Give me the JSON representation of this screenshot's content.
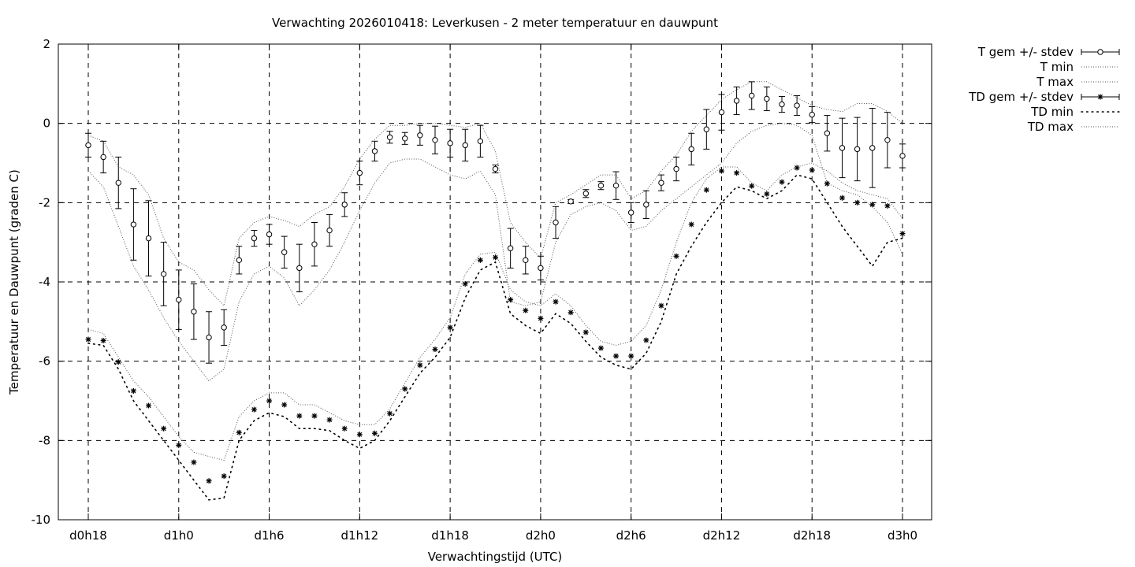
{
  "chart_data": {
    "type": "line",
    "title": "Verwachting 2026010418: Leverkusen - 2 meter temperatuur en dauwpunt",
    "xlabel": "Verwachtingstijd (UTC)",
    "ylabel": "Temperatuur en Dauwpunt (graden C)",
    "ylim": [
      -10,
      2
    ],
    "yticks": [
      2,
      0,
      -2,
      -4,
      -6,
      -8,
      -10
    ],
    "xlim": [
      18,
      75
    ],
    "xticks": [
      {
        "x": 18,
        "label": "d0h18"
      },
      {
        "x": 24,
        "label": "d1h0"
      },
      {
        "x": 30,
        "label": "d1h6"
      },
      {
        "x": 36,
        "label": "d1h12"
      },
      {
        "x": 42,
        "label": "d1h18"
      },
      {
        "x": 48,
        "label": "d2h0"
      },
      {
        "x": 54,
        "label": "d2h6"
      },
      {
        "x": 60,
        "label": "d2h12"
      },
      {
        "x": 66,
        "label": "d2h18"
      },
      {
        "x": 72,
        "label": "d3h0"
      }
    ],
    "grid": true,
    "legend_position": "outside-top-right",
    "series": [
      {
        "name": "T gem +/- stdev",
        "style": "errorbar-circle",
        "x": [
          18,
          19,
          20,
          21,
          22,
          23,
          24,
          25,
          26,
          27,
          28,
          29,
          30,
          31,
          32,
          33,
          34,
          35,
          36,
          37,
          38,
          39,
          40,
          41,
          42,
          43,
          44,
          45,
          46,
          47,
          48,
          49,
          50,
          51,
          52,
          53,
          54,
          55,
          56,
          57,
          58,
          59,
          60,
          61,
          62,
          63,
          64,
          65,
          66,
          67,
          68,
          69,
          70,
          71,
          72
        ],
        "y": [
          -0.55,
          -0.85,
          -1.5,
          -2.55,
          -2.9,
          -3.8,
          -4.45,
          -4.75,
          -5.4,
          -5.15,
          -3.45,
          -2.9,
          -2.8,
          -3.25,
          -3.65,
          -3.05,
          -2.7,
          -2.05,
          -1.25,
          -0.7,
          -0.35,
          -0.38,
          -0.3,
          -0.42,
          -0.5,
          -0.55,
          -0.45,
          -1.15,
          -3.15,
          -3.45,
          -3.65,
          -2.5,
          -1.97,
          -1.77,
          -1.57,
          -1.57,
          -2.25,
          -2.05,
          -1.5,
          -1.15,
          -0.65,
          -0.15,
          0.28,
          0.57,
          0.7,
          0.62,
          0.48,
          0.45,
          0.22,
          -0.25,
          -0.62,
          -0.65,
          -0.62,
          -0.42,
          -0.82
        ],
        "sd": [
          0.3,
          0.4,
          0.65,
          0.9,
          0.95,
          0.8,
          0.75,
          0.7,
          0.65,
          0.45,
          0.35,
          0.2,
          0.25,
          0.4,
          0.6,
          0.55,
          0.4,
          0.3,
          0.3,
          0.25,
          0.15,
          0.15,
          0.25,
          0.35,
          0.35,
          0.4,
          0.4,
          0.1,
          0.5,
          0.35,
          0.3,
          0.4,
          0.05,
          0.1,
          0.1,
          0.35,
          0.25,
          0.35,
          0.2,
          0.3,
          0.4,
          0.5,
          0.45,
          0.35,
          0.35,
          0.3,
          0.2,
          0.25,
          0.2,
          0.45,
          0.75,
          0.8,
          1.0,
          0.7,
          0.3
        ]
      },
      {
        "name": "T min",
        "style": "dotted",
        "x": [
          18,
          19,
          20,
          21,
          22,
          23,
          24,
          25,
          26,
          27,
          28,
          29,
          30,
          31,
          32,
          33,
          34,
          35,
          36,
          37,
          38,
          39,
          40,
          41,
          42,
          43,
          44,
          45,
          46,
          47,
          48,
          49,
          50,
          51,
          52,
          53,
          54,
          55,
          56,
          57,
          58,
          59,
          60,
          61,
          62,
          63,
          64,
          65,
          66,
          67,
          68,
          69,
          70,
          71,
          72
        ],
        "y": [
          -1.2,
          -1.6,
          -2.6,
          -3.6,
          -4.2,
          -4.9,
          -5.5,
          -6.0,
          -6.5,
          -6.2,
          -4.5,
          -3.8,
          -3.6,
          -3.9,
          -4.6,
          -4.2,
          -3.7,
          -3.0,
          -2.2,
          -1.5,
          -1.0,
          -0.9,
          -0.9,
          -1.1,
          -1.3,
          -1.4,
          -1.2,
          -1.8,
          -4.5,
          -4.6,
          -4.5,
          -3.0,
          -2.3,
          -2.1,
          -2.0,
          -2.2,
          -2.7,
          -2.6,
          -2.2,
          -1.9,
          -1.6,
          -1.3,
          -1.0,
          -0.5,
          -0.2,
          -0.05,
          0.0,
          -0.05,
          -0.3,
          -1.5,
          -1.7,
          -1.8,
          -2.1,
          -2.5,
          -3.3
        ]
      },
      {
        "name": "T max",
        "style": "dotted",
        "x": [
          18,
          19,
          20,
          21,
          22,
          23,
          24,
          25,
          26,
          27,
          28,
          29,
          30,
          31,
          32,
          33,
          34,
          35,
          36,
          37,
          38,
          39,
          40,
          41,
          42,
          43,
          44,
          45,
          46,
          47,
          48,
          49,
          50,
          51,
          52,
          53,
          54,
          55,
          56,
          57,
          58,
          59,
          60,
          61,
          62,
          63,
          64,
          65,
          66,
          67,
          68,
          69,
          70,
          71,
          72
        ],
        "y": [
          -0.3,
          -0.45,
          -1.1,
          -1.3,
          -1.8,
          -2.9,
          -3.5,
          -3.7,
          -4.2,
          -4.6,
          -2.9,
          -2.5,
          -2.35,
          -2.45,
          -2.6,
          -2.3,
          -2.1,
          -1.6,
          -0.9,
          -0.4,
          -0.05,
          -0.05,
          0.0,
          0.0,
          -0.05,
          -0.1,
          0.0,
          -0.7,
          -2.5,
          -3.0,
          -3.4,
          -2.0,
          -1.8,
          -1.55,
          -1.3,
          -1.3,
          -1.9,
          -1.7,
          -1.2,
          -0.8,
          -0.2,
          0.2,
          0.6,
          0.85,
          1.05,
          1.05,
          0.85,
          0.65,
          0.45,
          0.35,
          0.3,
          0.5,
          0.5,
          0.3,
          0.0
        ]
      },
      {
        "name": "TD gem +/- stdev",
        "style": "errorbar-star",
        "x": [
          18,
          19,
          20,
          21,
          22,
          23,
          24,
          25,
          26,
          27,
          28,
          29,
          30,
          31,
          32,
          33,
          34,
          35,
          36,
          37,
          38,
          39,
          40,
          41,
          42,
          43,
          44,
          45,
          46,
          47,
          48,
          49,
          50,
          51,
          52,
          53,
          54,
          55,
          56,
          57,
          58,
          59,
          60,
          61,
          62,
          63,
          64,
          65,
          66,
          67,
          68,
          69,
          70,
          71,
          72
        ],
        "y": [
          -5.45,
          -5.48,
          -6.02,
          -6.75,
          -7.12,
          -7.7,
          -8.12,
          -8.55,
          -9.02,
          -8.9,
          -7.8,
          -7.22,
          -7.0,
          -7.1,
          -7.38,
          -7.38,
          -7.48,
          -7.7,
          -7.85,
          -7.82,
          -7.32,
          -6.7,
          -6.1,
          -5.7,
          -5.15,
          -4.05,
          -3.45,
          -3.38,
          -4.45,
          -4.72,
          -4.92,
          -4.5,
          -4.77,
          -5.27,
          -5.67,
          -5.87,
          -5.87,
          -5.47,
          -4.6,
          -3.35,
          -2.55,
          -1.68,
          -1.2,
          -1.25,
          -1.58,
          -1.78,
          -1.48,
          -1.12,
          -1.18,
          -1.52,
          -1.88,
          -2.0,
          -2.05,
          -2.08,
          -2.78
        ]
      },
      {
        "name": "TD min",
        "style": "sparse-dotted",
        "x": [
          18,
          19,
          20,
          21,
          22,
          23,
          24,
          25,
          26,
          27,
          28,
          29,
          30,
          31,
          32,
          33,
          34,
          35,
          36,
          37,
          38,
          39,
          40,
          41,
          42,
          43,
          44,
          45,
          46,
          47,
          48,
          49,
          50,
          51,
          52,
          53,
          54,
          55,
          56,
          57,
          58,
          59,
          60,
          61,
          62,
          63,
          64,
          65,
          66,
          67,
          68,
          69,
          70,
          71,
          72
        ],
        "y": [
          -5.55,
          -5.6,
          -6.2,
          -7.0,
          -7.5,
          -8.0,
          -8.5,
          -9.0,
          -9.5,
          -9.45,
          -8.0,
          -7.5,
          -7.3,
          -7.4,
          -7.7,
          -7.7,
          -7.75,
          -8.0,
          -8.2,
          -8.0,
          -7.5,
          -6.9,
          -6.3,
          -5.9,
          -5.4,
          -4.4,
          -3.7,
          -3.5,
          -4.8,
          -5.1,
          -5.3,
          -4.8,
          -5.05,
          -5.5,
          -5.9,
          -6.1,
          -6.2,
          -5.8,
          -5.0,
          -3.8,
          -3.1,
          -2.5,
          -2.0,
          -1.6,
          -1.7,
          -1.9,
          -1.7,
          -1.3,
          -1.4,
          -2.0,
          -2.6,
          -3.1,
          -3.6,
          -3.0,
          -2.9
        ]
      },
      {
        "name": "TD max",
        "style": "dotted",
        "x": [
          18,
          19,
          20,
          21,
          22,
          23,
          24,
          25,
          26,
          27,
          28,
          29,
          30,
          31,
          32,
          33,
          34,
          35,
          36,
          37,
          38,
          39,
          40,
          41,
          42,
          43,
          44,
          45,
          46,
          47,
          48,
          49,
          50,
          51,
          52,
          53,
          54,
          55,
          56,
          57,
          58,
          59,
          60,
          61,
          62,
          63,
          64,
          65,
          66,
          67,
          68,
          69,
          70,
          71,
          72
        ],
        "y": [
          -5.2,
          -5.3,
          -5.9,
          -6.5,
          -6.9,
          -7.4,
          -7.9,
          -8.3,
          -8.4,
          -8.5,
          -7.4,
          -7.0,
          -6.8,
          -6.8,
          -7.1,
          -7.1,
          -7.3,
          -7.5,
          -7.6,
          -7.6,
          -7.2,
          -6.55,
          -5.9,
          -5.45,
          -4.9,
          -3.8,
          -3.3,
          -3.25,
          -4.2,
          -4.5,
          -4.6,
          -4.3,
          -4.6,
          -5.1,
          -5.5,
          -5.6,
          -5.5,
          -5.1,
          -4.2,
          -3.0,
          -2.0,
          -1.4,
          -1.1,
          -1.1,
          -1.5,
          -1.7,
          -1.3,
          -1.1,
          -1.0,
          -1.2,
          -1.5,
          -1.7,
          -1.8,
          -1.9,
          -2.4
        ]
      }
    ]
  }
}
